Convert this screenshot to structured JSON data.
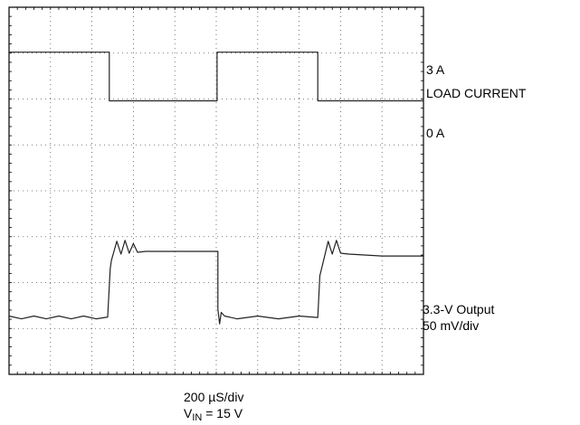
{
  "chart_data": {
    "type": "line",
    "title": "",
    "xlabel": "",
    "ylabel": "",
    "grid": true,
    "divisions": {
      "x": 10,
      "y": 8
    },
    "x_units": "div",
    "y_units": "div",
    "xlim": [
      0,
      10
    ],
    "ylim": [
      0,
      8
    ],
    "series": [
      {
        "trace": "load-current",
        "color": "#222222",
        "x": [
          0,
          2.42,
          2.42,
          5.02,
          5.02,
          7.45,
          7.45,
          10
        ],
        "y": [
          7.02,
          7.02,
          5.96,
          5.96,
          7.02,
          7.02,
          5.96,
          5.96
        ]
      },
      {
        "trace": "output-voltage",
        "color": "#222222",
        "x": [
          0,
          0.3,
          0.6,
          0.9,
          1.2,
          1.5,
          1.8,
          2.1,
          2.38,
          2.44,
          2.47,
          2.6,
          2.7,
          2.8,
          2.9,
          3.0,
          3.1,
          3.3,
          4.0,
          5.04,
          5.04,
          5.08,
          5.12,
          5.2,
          5.5,
          6.0,
          6.5,
          7.0,
          7.45,
          7.5,
          7.58,
          7.7,
          7.8,
          7.9,
          8.0,
          8.2,
          9.0,
          10
        ],
        "y": [
          1.27,
          1.21,
          1.27,
          1.21,
          1.27,
          1.21,
          1.27,
          1.21,
          1.25,
          2.3,
          2.48,
          2.9,
          2.62,
          2.92,
          2.64,
          2.85,
          2.66,
          2.68,
          2.68,
          2.68,
          1.42,
          1.1,
          1.35,
          1.27,
          1.21,
          1.27,
          1.21,
          1.27,
          1.24,
          2.15,
          2.45,
          2.9,
          2.62,
          2.92,
          2.64,
          2.62,
          2.58,
          2.58
        ]
      }
    ]
  },
  "labels": {
    "load_high": "3 A",
    "load_name": "LOAD CURRENT",
    "load_low": "0 A",
    "out_name": "3.3-V Output",
    "out_scale": "50 mV/div",
    "timebase": "200 µS/div",
    "vin_prefix": "V",
    "vin_sub": "IN",
    "vin_suffix": " = 15 V"
  }
}
